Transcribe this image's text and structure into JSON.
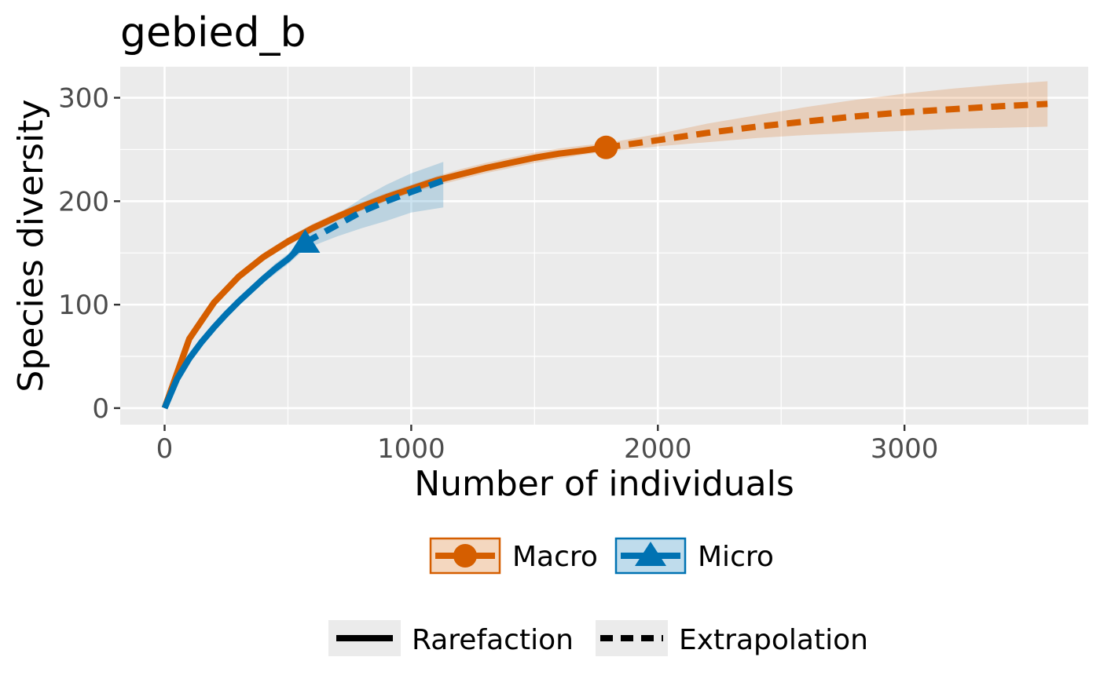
{
  "chart_data": {
    "type": "line",
    "title": "gebied_b",
    "xlabel": "Number of individuals",
    "ylabel": "Species diversity",
    "xlim": [
      -180,
      3745
    ],
    "ylim": [
      -16,
      330
    ],
    "xticks": [
      0,
      1000,
      2000,
      3000
    ],
    "xtick_labels": [
      "0",
      "1000",
      "2000",
      "3000"
    ],
    "yticks": [
      0,
      100,
      200,
      300
    ],
    "ytick_labels": [
      "0",
      "100",
      "200",
      "300"
    ],
    "grid": true,
    "background": "#ebebeb",
    "legend_position": "bottom",
    "series": [
      {
        "name": "Macro",
        "color": "#d55e00",
        "marker": "circle",
        "observed": {
          "x": 1790,
          "y": 252
        },
        "rarefaction": {
          "x": [
            0,
            100,
            200,
            300,
            400,
            500,
            600,
            700,
            800,
            900,
            1000,
            1100,
            1200,
            1300,
            1400,
            1500,
            1600,
            1700,
            1790
          ],
          "y": [
            0,
            67,
            102,
            127,
            146,
            161,
            174,
            185,
            195,
            204,
            212,
            220,
            226,
            232,
            237,
            242,
            246,
            249,
            252
          ],
          "lower": [
            0,
            64,
            98,
            123,
            142,
            157,
            170,
            181,
            191,
            200,
            208,
            215,
            221,
            227,
            232,
            237,
            241,
            245,
            248
          ],
          "upper": [
            0,
            70,
            106,
            131,
            150,
            165,
            178,
            189,
            199,
            208,
            216,
            224,
            231,
            237,
            242,
            247,
            251,
            254,
            256
          ]
        },
        "extrapolation": {
          "x": [
            1790,
            2000,
            2200,
            2400,
            2600,
            2800,
            3000,
            3200,
            3400,
            3580
          ],
          "y": [
            252,
            259,
            266,
            272,
            277,
            282,
            286,
            289,
            292,
            294
          ],
          "lower": [
            248,
            253,
            257,
            261,
            264,
            266,
            268,
            270,
            271,
            272
          ],
          "upper": [
            256,
            265,
            275,
            283,
            291,
            298,
            304,
            309,
            313,
            316
          ]
        }
      },
      {
        "name": "Micro",
        "color": "#0072b2",
        "marker": "triangle",
        "observed": {
          "x": 570,
          "y": 160
        },
        "rarefaction": {
          "x": [
            0,
            50,
            100,
            150,
            200,
            250,
            300,
            350,
            400,
            450,
            500,
            570
          ],
          "y": [
            0,
            28,
            48,
            64,
            78,
            91,
            103,
            114,
            125,
            135,
            144,
            160
          ],
          "lower": [
            0,
            26,
            45,
            60,
            74,
            87,
            99,
            110,
            121,
            130,
            139,
            154
          ],
          "upper": [
            0,
            30,
            51,
            68,
            82,
            95,
            107,
            118,
            129,
            140,
            149,
            166
          ]
        },
        "extrapolation": {
          "x": [
            570,
            700,
            800,
            900,
            1000,
            1130
          ],
          "y": [
            160,
            177,
            190,
            200,
            209,
            220
          ],
          "lower": [
            154,
            166,
            174,
            181,
            189,
            194
          ],
          "upper": [
            166,
            187,
            203,
            216,
            227,
            238
          ]
        }
      }
    ],
    "legends": [
      {
        "entries": [
          {
            "label": "Macro"
          },
          {
            "label": "Micro"
          }
        ]
      },
      {
        "entries": [
          {
            "label": "Rarefaction",
            "linetype": "solid"
          },
          {
            "label": "Extrapolation",
            "linetype": "dashed"
          }
        ]
      }
    ]
  }
}
